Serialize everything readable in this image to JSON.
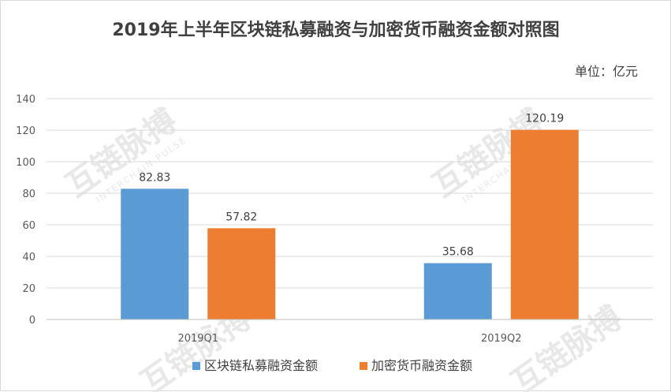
{
  "chart_data": {
    "type": "bar",
    "title": "2019年上半年区块链私募融资与加密货币融资金额对照图",
    "unit_label": "单位：亿元",
    "categories": [
      "2019Q1",
      "2019Q2"
    ],
    "series": [
      {
        "name": "区块链私募融资金额",
        "values": [
          82.83,
          35.68
        ],
        "labels": [
          "82.83",
          "35.68"
        ],
        "color": "#5B9BD5"
      },
      {
        "name": "加密货币融资金额",
        "values": [
          57.82,
          120.19
        ],
        "labels": [
          "57.82",
          "120.19"
        ],
        "color": "#ED7D31"
      }
    ],
    "ylim": [
      0,
      140
    ],
    "yticks": [
      0,
      20,
      40,
      60,
      80,
      100,
      120,
      140
    ],
    "grid": true,
    "legend_position": "bottom"
  },
  "watermark": {
    "text": "互链脉搏",
    "subtext": "INTERCHAIN PULSE"
  }
}
